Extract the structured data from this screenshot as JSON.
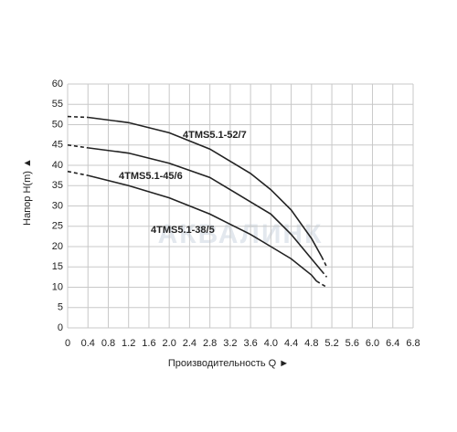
{
  "chart_data": {
    "type": "line",
    "x_label": "Производительность Q ►",
    "y_label": "Напор H(m) ▲",
    "watermark": "АКВАЛИНК",
    "xlim": [
      0,
      6.8
    ],
    "ylim": [
      0,
      60
    ],
    "xticks": [
      0,
      0.4,
      0.8,
      1.2,
      1.6,
      {
        "value": 2,
        "label": "2.0"
      },
      2.4,
      2.8,
      3.2,
      3.6,
      {
        "value": 4,
        "label": "4.0"
      },
      4.4,
      4.8,
      5.2,
      5.6,
      {
        "value": 6,
        "label": "6.0"
      },
      6.4,
      6.8
    ],
    "yticks": [
      0,
      5,
      10,
      15,
      20,
      25,
      30,
      35,
      40,
      45,
      50,
      55,
      60
    ],
    "grid": true,
    "dashed_ends": true,
    "series": [
      {
        "name": "4TMS5.1-52/7",
        "color": "#222222",
        "x": [
          0,
          0.4,
          1.2,
          2.0,
          2.8,
          3.6,
          4.0,
          4.4,
          4.8,
          5.0,
          5.1
        ],
        "values": [
          52,
          51.8,
          50.5,
          48,
          44,
          38,
          34,
          29,
          22,
          17.5,
          15
        ]
      },
      {
        "name": "4TMS5.1-45/6",
        "color": "#222222",
        "x": [
          0,
          0.4,
          1.2,
          2.0,
          2.8,
          3.6,
          4.0,
          4.4,
          4.8,
          5.0,
          5.1
        ],
        "values": [
          45,
          44.3,
          43,
          40.5,
          37,
          31,
          28,
          23,
          17,
          14,
          12.5
        ]
      },
      {
        "name": "4TMS5.1-38/5",
        "color": "#222222",
        "x": [
          0,
          0.4,
          1.2,
          2.0,
          2.8,
          3.6,
          4.0,
          4.4,
          4.8,
          4.9,
          5.1
        ],
        "values": [
          38.5,
          37.5,
          35,
          32,
          28,
          23,
          20,
          17,
          13,
          11.5,
          10
        ]
      }
    ]
  }
}
